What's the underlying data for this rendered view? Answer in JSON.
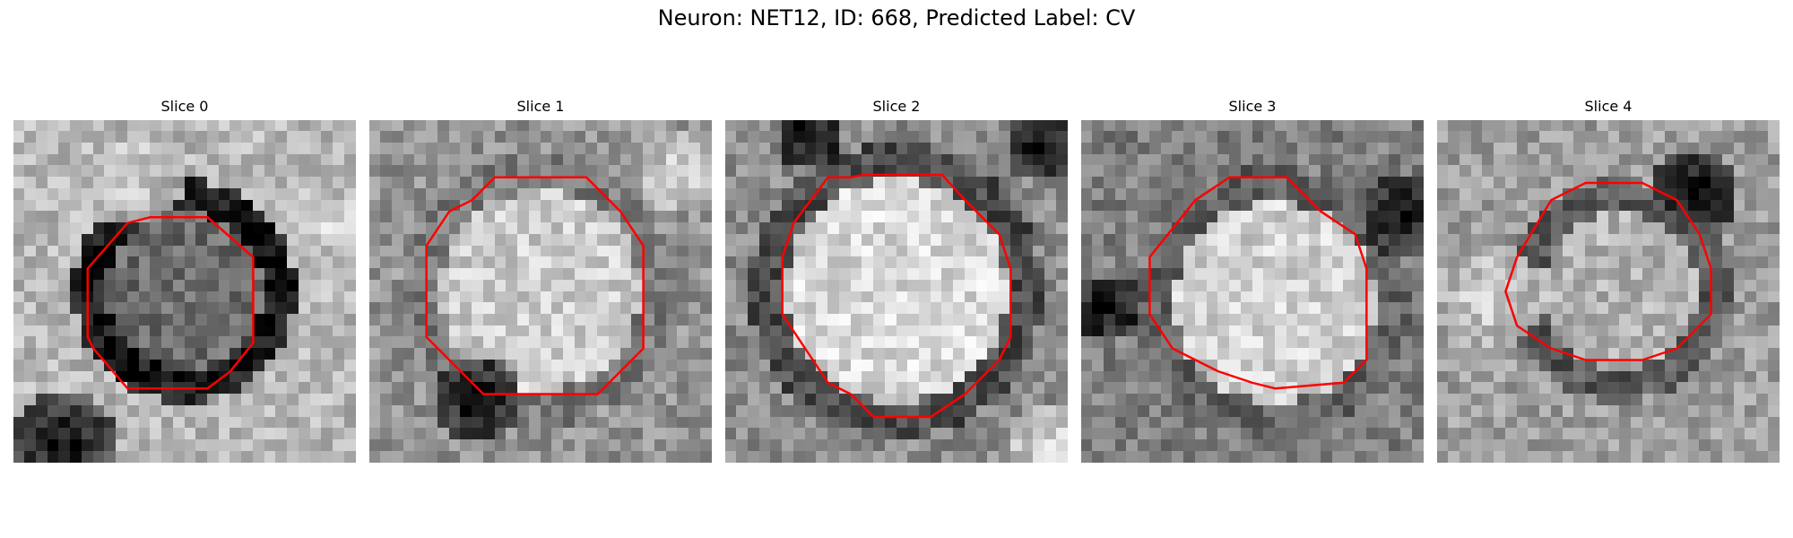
{
  "figure": {
    "title": "Neuron: NET12, ID: 668, Predicted Label: CV"
  },
  "contour_color": "#ff0000",
  "colormap": "gray",
  "panels": [
    {
      "title": "Slice 0"
    },
    {
      "title": "Slice 1"
    },
    {
      "title": "Slice 2"
    },
    {
      "title": "Slice 3"
    },
    {
      "title": "Slice 4"
    }
  ]
}
